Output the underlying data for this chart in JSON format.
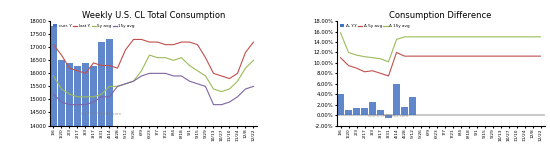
{
  "title1": "Weekly U.S. CL Total Consumption",
  "title2": "Consumption Difference",
  "legend1": [
    "curr. Y",
    "last Y.",
    "5y avg",
    "15y avg"
  ],
  "legend2": [
    "Δ, Y-Y",
    "Δ 5y avg",
    "Δ 15y avg"
  ],
  "bar_color": "#4472C4",
  "line_colors1": [
    "#C0504D",
    "#9BBB59",
    "#8064A2"
  ],
  "line_colors2": [
    "#C0504D",
    "#9BBB59"
  ],
  "watermark": "GOPU TRADING.com",
  "xlabels": [
    "1/6",
    "1/20",
    "2/3",
    "2/17",
    "3/3",
    "3/17",
    "3/31",
    "4/14",
    "4/28",
    "5/12",
    "5/26",
    "6/9",
    "6/23",
    "7/7",
    "7/21",
    "8/4",
    "8/18",
    "9/1",
    "9/15",
    "9/29",
    "10/13",
    "10/27",
    "11/10",
    "11/24",
    "12/8",
    "12/22"
  ],
  "ylim1": [
    14000,
    18000
  ],
  "ylim2": [
    -0.02,
    0.18
  ],
  "yticks1": [
    14000,
    14500,
    15000,
    15500,
    16000,
    16500,
    17000,
    17500,
    18000
  ],
  "yticks2": [
    -0.02,
    0.0,
    0.02,
    0.04,
    0.06,
    0.08,
    0.1,
    0.12,
    0.14,
    0.16,
    0.18
  ],
  "curr_y_bars": [
    17800,
    16500,
    16400,
    16300,
    16400,
    16300,
    17200,
    17300,
    null,
    null,
    null,
    null,
    null,
    null,
    null,
    null,
    null,
    null,
    null,
    null,
    null,
    null,
    null,
    null,
    null,
    null
  ],
  "last_y_line": [
    17100,
    16700,
    16200,
    16100,
    16000,
    16400,
    16300,
    16300,
    16200,
    16900,
    17300,
    17300,
    17200,
    17200,
    17100,
    17100,
    17200,
    17200,
    17100,
    16600,
    16000,
    15900,
    15800,
    16000,
    16800,
    17200
  ],
  "avg5y_line": [
    15900,
    15400,
    15200,
    15100,
    15100,
    15100,
    15200,
    15500,
    15500,
    15600,
    15700,
    16100,
    16700,
    16600,
    16600,
    16500,
    16600,
    16300,
    16100,
    15900,
    15400,
    15300,
    15400,
    15700,
    16200,
    16500
  ],
  "avg15y_line": [
    15200,
    14900,
    14800,
    14800,
    14800,
    14900,
    15100,
    15100,
    15500,
    15600,
    15700,
    15900,
    16000,
    16000,
    16000,
    15900,
    15900,
    15700,
    15600,
    15500,
    14800,
    14800,
    14900,
    15100,
    15400,
    15500
  ],
  "diff_bars": [
    0.04,
    0.01,
    0.013,
    0.013,
    0.025,
    0.01,
    -0.005,
    0.06,
    0.015,
    0.035,
    null,
    null,
    null,
    null,
    null,
    null,
    null,
    null,
    null,
    null,
    null,
    null,
    null,
    null,
    null,
    null
  ],
  "diff_5y_line": [
    0.11,
    0.095,
    0.09,
    0.083,
    0.085,
    0.08,
    0.075,
    0.12,
    0.113,
    0.113,
    0.113,
    0.113,
    0.113,
    0.113,
    0.113,
    0.113,
    0.113,
    0.113,
    0.113,
    0.113,
    0.113,
    0.113,
    0.113,
    0.113,
    0.113,
    0.113
  ],
  "diff_15y_line": [
    0.158,
    0.12,
    0.115,
    0.112,
    0.11,
    0.108,
    0.102,
    0.145,
    0.15,
    0.15,
    0.15,
    0.15,
    0.15,
    0.15,
    0.15,
    0.15,
    0.15,
    0.15,
    0.15,
    0.15,
    0.15,
    0.15,
    0.15,
    0.15,
    0.15,
    0.15
  ]
}
